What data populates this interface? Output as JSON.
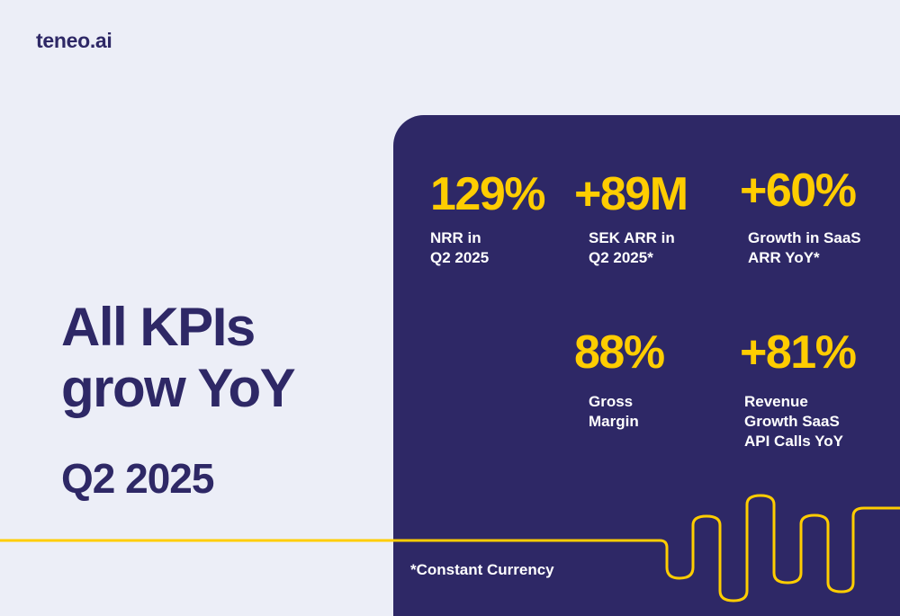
{
  "logo": {
    "text": "teneo.ai"
  },
  "headline": {
    "line1": "All KPIs",
    "line2": "grow YoY",
    "period": "Q2 2025"
  },
  "kpis": [
    {
      "value": "129%",
      "label": "NRR in\nQ2 2025"
    },
    {
      "value": "+89M",
      "label": "SEK ARR in\nQ2 2025*"
    },
    {
      "value": "+60%",
      "label": "Growth in SaaS\nARR YoY*"
    },
    {
      "value": "88%",
      "label": "Gross\nMargin"
    },
    {
      "value": "+81%",
      "label": "Revenue\nGrowth SaaS\nAPI Calls YoY"
    }
  ],
  "footnote": "*Constant Currency",
  "colors": {
    "navy": "#2e2866",
    "yellow": "#ffcd00",
    "background": "#eceef7",
    "white": "#ffffff"
  }
}
